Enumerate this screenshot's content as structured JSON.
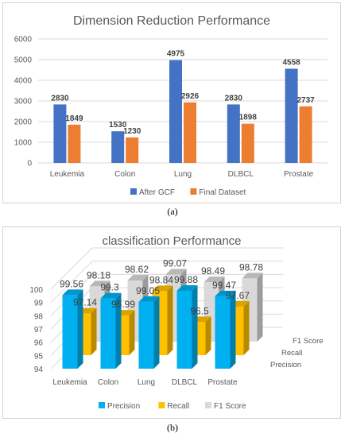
{
  "chart_data": [
    {
      "type": "bar",
      "title": "Dimension Reduction Performance",
      "categories": [
        "Leukemia",
        "Colon",
        "Lung",
        "DLBCL",
        "Prostate"
      ],
      "series": [
        {
          "name": "After GCF",
          "values": [
            2830,
            1530,
            4975,
            2830,
            4558
          ],
          "color": "#4472c4"
        },
        {
          "name": "Final Dataset",
          "values": [
            1849,
            1230,
            2926,
            1898,
            2737
          ],
          "color": "#ed7d31"
        }
      ],
      "ylim": [
        0,
        6000
      ],
      "yticks": [
        "0",
        "1000",
        "2000",
        "3000",
        "4000",
        "5000",
        "6000"
      ],
      "grid": true,
      "legend": "bottom",
      "caption": "(a)"
    },
    {
      "type": "bar",
      "title": "classification Performance",
      "categories": [
        "Leukemia",
        "Colon",
        "Lung",
        "DLBCL",
        "Prostate"
      ],
      "series": [
        {
          "name": "Precision",
          "values": [
            99.56,
            99.3,
            99.05,
            99.88,
            99.47
          ],
          "labels": [
            "99.56",
            "99.3",
            "99.05",
            "99.88",
            "99.47"
          ],
          "color": "#00b0f0"
        },
        {
          "name": "Recall",
          "values": [
            97.14,
            96.99,
            98.84,
            96.5,
            97.67
          ],
          "labels": [
            "97.14",
            "96.99",
            "98.84",
            "96.5",
            "97.67"
          ],
          "color": "#ffc000"
        },
        {
          "name": "F1 Score",
          "values": [
            98.18,
            98.62,
            99.07,
            98.49,
            98.78
          ],
          "labels": [
            "98.18",
            "98.62",
            "99.07",
            "98.49",
            "98.78"
          ],
          "color": "#d9d9d9"
        }
      ],
      "ylim": [
        94,
        100
      ],
      "yticks": [
        "94",
        "95",
        "96",
        "97",
        "98",
        "99",
        "100"
      ],
      "depth_axis": [
        "Precision",
        "Recall",
        "F1 Score"
      ],
      "grid": true,
      "legend": "bottom",
      "style": "3d",
      "caption": "(b)"
    }
  ]
}
